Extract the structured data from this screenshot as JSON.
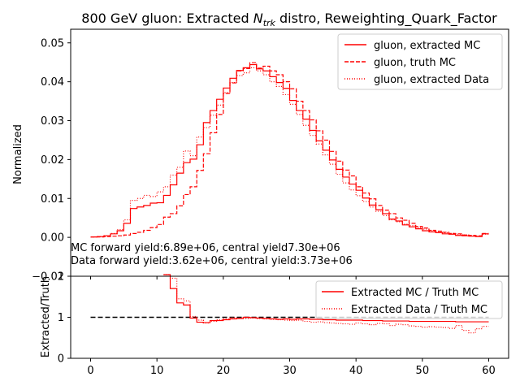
{
  "colors": {
    "series": "#ff0000",
    "reference": "#000000",
    "axes": "#000000",
    "legend_border": "#cccccc"
  },
  "chart_data": [
    {
      "type": "line",
      "title_prefix": "800 GeV gluon: Extracted ",
      "title_var_main": "N",
      "title_var_sub": "trk",
      "title_suffix": " distro, Reweighting_Quark_Factor",
      "xlabel": "",
      "ylabel": "Normalized",
      "xlim": [
        -3,
        63
      ],
      "ylim": [
        -0.01,
        0.0535
      ],
      "yticks": [
        -0.01,
        0.0,
        0.01,
        0.02,
        0.03,
        0.04,
        0.05
      ],
      "ytick_labels": [
        "−0.01",
        "0.00",
        "0.01",
        "0.02",
        "0.03",
        "0.04",
        "0.05"
      ],
      "grid": false,
      "legend_position": "top-right",
      "annotations": [
        "MC forward yield:6.89e+06, central yield7.30e+06",
        "Data forward yield:3.62e+06, central yield:3.73e+06"
      ],
      "bin_edges_start": 0,
      "bin_width": 1,
      "series": [
        {
          "name": "gluon, extracted MC",
          "style": "solid",
          "values": [
            0.0001,
            0.0002,
            0.0004,
            0.0009,
            0.0017,
            0.0036,
            0.0074,
            0.0078,
            0.0082,
            0.0088,
            0.0089,
            0.0108,
            0.0135,
            0.0165,
            0.0192,
            0.0201,
            0.0238,
            0.0295,
            0.0326,
            0.0355,
            0.0384,
            0.0409,
            0.0429,
            0.0436,
            0.0444,
            0.0433,
            0.0428,
            0.0413,
            0.0398,
            0.0383,
            0.0352,
            0.0326,
            0.0304,
            0.0275,
            0.0248,
            0.0224,
            0.0199,
            0.0175,
            0.0155,
            0.0137,
            0.0121,
            0.0101,
            0.0083,
            0.0071,
            0.0061,
            0.0047,
            0.0042,
            0.0032,
            0.0027,
            0.0022,
            0.0017,
            0.0014,
            0.0012,
            0.0009,
            0.0008,
            0.0005,
            0.0004,
            0.0003,
            0.0002,
            0.0009
          ]
        },
        {
          "name": "gluon, truth MC",
          "style": "dashed",
          "values": [
            0.0001,
            0.0001,
            0.0002,
            0.0003,
            0.0004,
            0.0006,
            0.001,
            0.0013,
            0.0018,
            0.0025,
            0.0033,
            0.0052,
            0.0061,
            0.0081,
            0.011,
            0.013,
            0.0172,
            0.0215,
            0.0269,
            0.0316,
            0.037,
            0.0397,
            0.0428,
            0.0434,
            0.0449,
            0.0435,
            0.044,
            0.0428,
            0.0418,
            0.04,
            0.0382,
            0.035,
            0.0326,
            0.0302,
            0.0274,
            0.025,
            0.0221,
            0.0196,
            0.0173,
            0.0158,
            0.013,
            0.0114,
            0.0099,
            0.0082,
            0.007,
            0.0061,
            0.005,
            0.0044,
            0.0036,
            0.0028,
            0.0024,
            0.0018,
            0.0016,
            0.0013,
            0.001,
            0.0009,
            0.0006,
            0.0005,
            0.0004,
            0.001
          ]
        },
        {
          "name": "gluon, extracted Data",
          "style": "dotted",
          "values": [
            0.0001,
            0.0002,
            0.0004,
            0.001,
            0.002,
            0.0045,
            0.0095,
            0.01,
            0.0108,
            0.0105,
            0.0117,
            0.013,
            0.016,
            0.018,
            0.0222,
            0.021,
            0.0258,
            0.0282,
            0.0314,
            0.034,
            0.0372,
            0.0398,
            0.0416,
            0.0423,
            0.0436,
            0.0428,
            0.0418,
            0.04,
            0.0388,
            0.0367,
            0.0342,
            0.0316,
            0.0288,
            0.0262,
            0.024,
            0.0212,
            0.0188,
            0.0162,
            0.014,
            0.0122,
            0.0107,
            0.0092,
            0.0078,
            0.0067,
            0.0056,
            0.0045,
            0.004,
            0.0034,
            0.003,
            0.0025,
            0.0021,
            0.0017,
            0.0015,
            0.0012,
            0.001,
            0.0008,
            0.0006,
            0.0004,
            0.0003,
            0.0008
          ]
        }
      ]
    },
    {
      "type": "line",
      "xlabel": "",
      "ylabel": "Extracted/Truth",
      "xlim": [
        -3,
        63
      ],
      "ylim": [
        0,
        2
      ],
      "xticks": [
        0,
        10,
        20,
        30,
        40,
        50,
        60
      ],
      "xtick_labels": [
        "0",
        "10",
        "20",
        "30",
        "40",
        "50",
        "60"
      ],
      "yticks": [
        0,
        1,
        2
      ],
      "ytick_labels": [
        "0",
        "1",
        "2"
      ],
      "grid": false,
      "legend_position": "top-right",
      "reference_line": {
        "y": 1,
        "x_range": [
          0,
          60
        ],
        "style": "dashed"
      },
      "bin_edges_start": 0,
      "bin_width": 1,
      "series": [
        {
          "name": "Extracted MC / Truth MC",
          "style": "solid",
          "values": [
            null,
            null,
            null,
            null,
            null,
            null,
            null,
            null,
            null,
            null,
            null,
            3.5,
            1.7,
            1.35,
            1.3,
            0.98,
            0.88,
            0.87,
            0.92,
            0.92,
            0.94,
            0.96,
            0.97,
            1.0,
            0.99,
            0.98,
            0.97,
            0.96,
            0.95,
            0.96,
            0.95,
            0.96,
            0.96,
            0.95,
            0.95,
            0.94,
            0.94,
            0.93,
            0.93,
            0.93,
            0.93,
            0.92,
            0.92,
            0.92,
            0.91,
            0.91,
            0.91,
            0.91,
            0.9,
            0.9,
            0.9,
            0.9,
            0.9,
            0.9,
            0.9,
            0.89,
            0.89,
            0.89,
            0.89,
            0.89
          ]
        },
        {
          "name": "Extracted Data / Truth MC",
          "style": "dotted",
          "values": [
            null,
            null,
            null,
            null,
            null,
            null,
            null,
            null,
            null,
            null,
            null,
            2.8,
            1.95,
            1.45,
            1.4,
            1.02,
            0.93,
            0.86,
            0.9,
            0.94,
            0.96,
            0.99,
            0.98,
            0.97,
            0.98,
            0.97,
            0.96,
            0.95,
            0.94,
            0.93,
            0.92,
            0.93,
            0.9,
            0.88,
            0.89,
            0.87,
            0.86,
            0.85,
            0.84,
            0.83,
            0.86,
            0.84,
            0.82,
            0.85,
            0.84,
            0.8,
            0.83,
            0.82,
            0.79,
            0.78,
            0.76,
            0.77,
            0.76,
            0.75,
            0.73,
            0.8,
            0.68,
            0.62,
            0.72,
            0.78
          ]
        }
      ]
    }
  ]
}
